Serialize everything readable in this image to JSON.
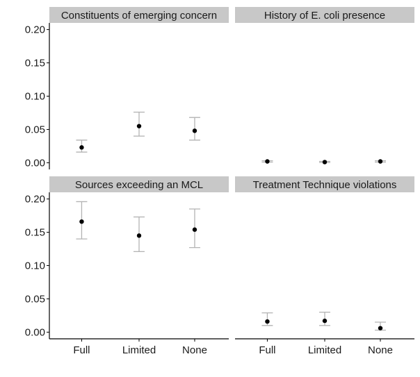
{
  "chart_data": {
    "type": "scatter",
    "subtype": "point-with-error-bars, faceted 2x2",
    "categories": [
      "Full",
      "Limited",
      "None"
    ],
    "ylim": [
      -0.01,
      0.21
    ],
    "yticks": [
      "0.00",
      "0.05",
      "0.10",
      "0.15",
      "0.20"
    ],
    "grid": false,
    "colors": {
      "point": "#000000",
      "errorbar": "#b3b3b3",
      "strip": "#c8c8c8",
      "axis": "#000000"
    },
    "panels": [
      {
        "title": "Constituents of emerging concern",
        "points": [
          {
            "category": "Full",
            "value": 0.023,
            "lower": 0.016,
            "upper": 0.034
          },
          {
            "category": "Limited",
            "value": 0.055,
            "lower": 0.04,
            "upper": 0.076
          },
          {
            "category": "None",
            "value": 0.048,
            "lower": 0.034,
            "upper": 0.068
          }
        ]
      },
      {
        "title": "History of E. coli presence",
        "points": [
          {
            "category": "Full",
            "value": 0.002,
            "lower": 0.001,
            "upper": 0.003
          },
          {
            "category": "Limited",
            "value": 0.001,
            "lower": 0.0005,
            "upper": 0.002
          },
          {
            "category": "None",
            "value": 0.002,
            "lower": 0.001,
            "upper": 0.003
          }
        ]
      },
      {
        "title": "Sources exceeding an MCL",
        "points": [
          {
            "category": "Full",
            "value": 0.166,
            "lower": 0.14,
            "upper": 0.196
          },
          {
            "category": "Limited",
            "value": 0.145,
            "lower": 0.121,
            "upper": 0.173
          },
          {
            "category": "None",
            "value": 0.154,
            "lower": 0.127,
            "upper": 0.185
          }
        ]
      },
      {
        "title": "Treatment Technique violations",
        "points": [
          {
            "category": "Full",
            "value": 0.016,
            "lower": 0.01,
            "upper": 0.029
          },
          {
            "category": "Limited",
            "value": 0.017,
            "lower": 0.01,
            "upper": 0.03
          },
          {
            "category": "None",
            "value": 0.006,
            "lower": 0.003,
            "upper": 0.015
          }
        ]
      }
    ]
  }
}
